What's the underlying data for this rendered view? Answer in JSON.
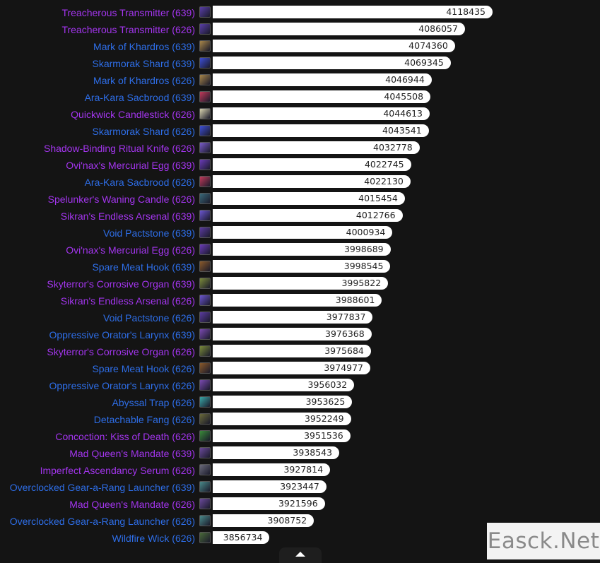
{
  "chart_data": {
    "type": "bar",
    "orientation": "horizontal",
    "title": "",
    "xlabel": "",
    "ylabel": "",
    "xlim": [
      3790000,
      4118435
    ],
    "categories": [
      "Treacherous Transmitter (639)",
      "Treacherous Transmitter (626)",
      "Mark of Khardros (639)",
      "Skarmorak Shard (639)",
      "Mark of Khardros (626)",
      "Ara-Kara Sacbrood (639)",
      "Quickwick Candlestick (626)",
      "Skarmorak Shard (626)",
      "Shadow-Binding Ritual Knife (626)",
      "Ovi'nax's Mercurial Egg (639)",
      "Ara-Kara Sacbrood (626)",
      "Spelunker's Waning Candle (626)",
      "Sikran's Endless Arsenal (639)",
      "Void Pactstone (639)",
      "Ovi'nax's Mercurial Egg (626)",
      "Spare Meat Hook (639)",
      "Skyterror's Corrosive Organ (639)",
      "Sikran's Endless Arsenal (626)",
      "Void Pactstone (626)",
      "Oppressive Orator's Larynx (639)",
      "Skyterror's Corrosive Organ (626)",
      "Spare Meat Hook (626)",
      "Oppressive Orator's Larynx (626)",
      "Abyssal Trap (626)",
      "Detachable Fang (626)",
      "Concoction: Kiss of Death (626)",
      "Mad Queen's Mandate (639)",
      "Imperfect Ascendancy Serum (626)",
      "Overclocked Gear-a-Rang Launcher (639)",
      "Mad Queen's Mandate (626)",
      "Overclocked Gear-a-Rang Launcher (626)",
      "Wildfire Wick (626)"
    ],
    "values": [
      4118435,
      4086057,
      4074360,
      4069345,
      4046944,
      4045508,
      4044613,
      4043541,
      4032778,
      4022745,
      4022130,
      4015454,
      4012766,
      4000934,
      3998689,
      3998545,
      3995822,
      3988601,
      3977837,
      3976368,
      3975684,
      3974977,
      3956032,
      3953625,
      3952249,
      3951536,
      3938543,
      3927814,
      3923447,
      3921596,
      3908752,
      3856734
    ],
    "value_labels": [
      "4118435",
      "4086057",
      "4074360",
      "4069345",
      "4046944",
      "4045508",
      "4044613",
      "4043541",
      "4032778",
      "4022745",
      "4022130",
      "4015454",
      "4012766",
      "4000934",
      "3998689",
      "3998545",
      "3995822",
      "3988601",
      "3977837",
      "3976368",
      "3975684",
      "3974977",
      "3956032",
      "3953625",
      "3952249",
      "3951536",
      "3938543",
      "3927814",
      "3923447",
      "3921596",
      "3908752",
      "3856734"
    ],
    "label_colors": [
      "#a335ee",
      "#a335ee",
      "#2e6ee8",
      "#2e6ee8",
      "#2e6ee8",
      "#2e6ee8",
      "#a335ee",
      "#2e6ee8",
      "#a335ee",
      "#a335ee",
      "#2e6ee8",
      "#a335ee",
      "#a335ee",
      "#2e6ee8",
      "#a335ee",
      "#2e6ee8",
      "#a335ee",
      "#a335ee",
      "#2e6ee8",
      "#2e6ee8",
      "#a335ee",
      "#2e6ee8",
      "#2e6ee8",
      "#2e6ee8",
      "#2e6ee8",
      "#a335ee",
      "#a335ee",
      "#a335ee",
      "#2e6ee8",
      "#a335ee",
      "#2e6ee8",
      "#2e6ee8"
    ],
    "icon_colors": [
      "#5a3fa8",
      "#5a3fa8",
      "#a8874a",
      "#3d4fd6",
      "#a8874a",
      "#c23a5a",
      "#d9d4b0",
      "#3d4fd6",
      "#7a5cc9",
      "#6a3bb8",
      "#c23a5a",
      "#3a6a7a",
      "#6b56d0",
      "#5b3ba0",
      "#6a3bb8",
      "#8a5a2a",
      "#7a8a3a",
      "#6b56d0",
      "#5b3ba0",
      "#7a4ab0",
      "#7a8a3a",
      "#8a5a2a",
      "#7a4ab0",
      "#3aa8a8",
      "#6a6a3a",
      "#3a8a3a",
      "#6a4a9a",
      "#6a6a7a",
      "#4a8a8a",
      "#6a4a9a",
      "#4a8a8a",
      "#4a6a3a"
    ],
    "grid": false,
    "legend": "none"
  },
  "scroll_icon": "chevron-up-icon",
  "watermark": {
    "text": "Easck.Net"
  }
}
